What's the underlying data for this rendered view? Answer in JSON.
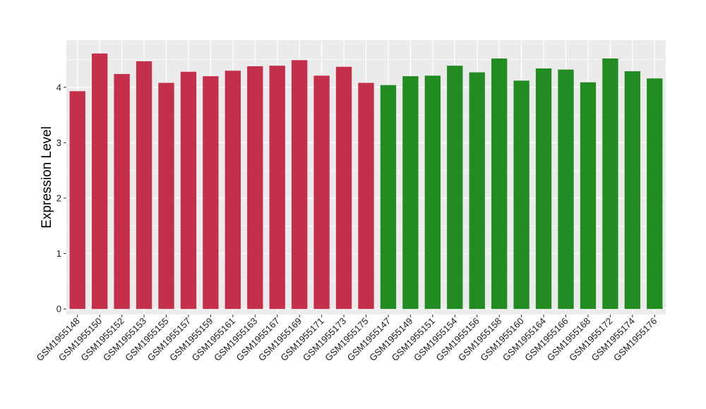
{
  "chart_data": {
    "type": "bar",
    "ylabel": "Expression Level",
    "xlabel": "",
    "ylim": [
      -0.1,
      4.85
    ],
    "yticks": [
      0,
      1,
      2,
      3,
      4
    ],
    "grid": true,
    "colors": {
      "group1": "#C4304A",
      "group2": "#228B22",
      "panel": "#EBEBEB",
      "grid": "#FFFFFF"
    },
    "categories": [
      "GSM1955148",
      "GSM1955150",
      "GSM1955152",
      "GSM1955153",
      "GSM1955155",
      "GSM1955157",
      "GSM1955159",
      "GSM1955161",
      "GSM1955163",
      "GSM1955167",
      "GSM1955169",
      "GSM1955171",
      "GSM1955173",
      "GSM1955175",
      "GSM1955147",
      "GSM1955149",
      "GSM1955151",
      "GSM1955154",
      "GSM1955156",
      "GSM1955158",
      "GSM1955160",
      "GSM1955164",
      "GSM1955166",
      "GSM1955168",
      "GSM1955172",
      "GSM1955174",
      "GSM1955176"
    ],
    "values": [
      3.93,
      4.61,
      4.24,
      4.47,
      4.08,
      4.28,
      4.2,
      4.3,
      4.38,
      4.39,
      4.49,
      4.21,
      4.37,
      4.08,
      4.04,
      4.2,
      4.21,
      4.39,
      4.27,
      4.52,
      4.12,
      4.34,
      4.32,
      4.09,
      4.52,
      4.29,
      4.16
    ],
    "groups": [
      "group1",
      "group1",
      "group1",
      "group1",
      "group1",
      "group1",
      "group1",
      "group1",
      "group1",
      "group1",
      "group1",
      "group1",
      "group1",
      "group1",
      "group2",
      "group2",
      "group2",
      "group2",
      "group2",
      "group2",
      "group2",
      "group2",
      "group2",
      "group2",
      "group2",
      "group2",
      "group2"
    ]
  }
}
